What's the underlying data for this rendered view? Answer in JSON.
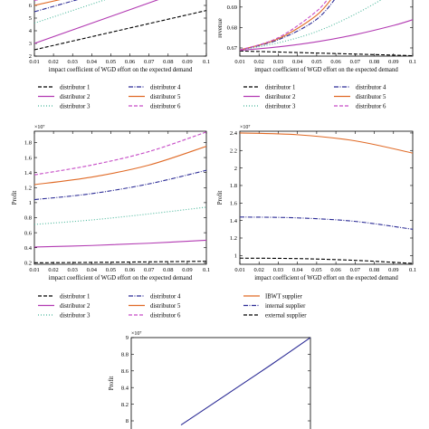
{
  "chart_data": [
    {
      "type": "line",
      "xlabel": "impact coefficient of WGD effort on the expected demand",
      "ylabel": "",
      "exponent_label": "",
      "x": [
        0.01,
        0.02,
        0.03,
        0.04,
        0.05,
        0.06,
        0.07,
        0.08,
        0.09,
        0.1
      ],
      "xlim": [
        0.01,
        0.1
      ],
      "ylim": [
        2,
        7
      ],
      "xticks": [
        "0.01",
        "0.02",
        "0.03",
        "0.04",
        "0.05",
        "0.06",
        "0.07",
        "0.08",
        "0.09",
        "0.1"
      ],
      "yticks": [
        {
          "v": 2,
          "t": "2"
        },
        {
          "v": 3,
          "t": "3"
        },
        {
          "v": 4,
          "t": "4"
        },
        {
          "v": 5,
          "t": "5"
        },
        {
          "v": 6,
          "t": "6"
        }
      ],
      "legend_columns": 2,
      "series": [
        {
          "name": "distributor 1",
          "color": "#000000",
          "dash": "4,2",
          "x": [
            0.01,
            0.1
          ],
          "values": [
            2.5,
            5.6
          ]
        },
        {
          "name": "distributor 2",
          "color": "#b23ab2",
          "dash": "",
          "x": [
            0.01,
            0.085
          ],
          "values": [
            3.0,
            7.0
          ]
        },
        {
          "name": "distributor 3",
          "color": "#4bb89c",
          "dash": "1,2",
          "x": [
            0.01,
            0.062
          ],
          "values": [
            4.6,
            7.2
          ]
        },
        {
          "name": "distributor 4",
          "color": "#2c2c96",
          "dash": "5,1.5,1,1.5",
          "x": [
            0.01,
            0.05
          ],
          "values": [
            5.5,
            7.2
          ]
        },
        {
          "name": "distributor 5",
          "color": "#e06a26",
          "dash": "",
          "x": [
            0.01,
            0.045
          ],
          "values": [
            6.0,
            7.2
          ]
        },
        {
          "name": "distributor 6",
          "color": "#c64cc6",
          "dash": "4,2",
          "x": [
            0.01,
            0.04
          ],
          "values": [
            6.4,
            7.2
          ]
        }
      ]
    },
    {
      "type": "line",
      "xlabel": "impact coefficient of WGD effort on the expected demand",
      "ylabel": "revenue",
      "exponent_label": "",
      "x": [
        0.01,
        0.02,
        0.03,
        0.04,
        0.05,
        0.06,
        0.07,
        0.08,
        0.09,
        0.1
      ],
      "xlim": [
        0.01,
        0.1
      ],
      "ylim": [
        0.666,
        0.697
      ],
      "xticks": [
        "0.01",
        "0.02",
        "0.03",
        "0.04",
        "0.05",
        "0.06",
        "0.07",
        "0.08",
        "0.09",
        "0.1"
      ],
      "yticks": [
        {
          "v": 0.67,
          "t": "0.67"
        },
        {
          "v": 0.68,
          "t": "0.68"
        },
        {
          "v": 0.69,
          "t": "0.69"
        }
      ],
      "legend_columns": 2,
      "series": [
        {
          "name": "distributor 1",
          "color": "#000000",
          "dash": "4,2",
          "x": [
            0.01,
            0.03,
            0.05,
            0.07,
            0.09,
            0.1
          ],
          "values": [
            0.6685,
            0.668,
            0.6675,
            0.667,
            0.6665,
            0.6662
          ]
        },
        {
          "name": "distributor 2",
          "color": "#b23ab2",
          "dash": "",
          "x": [
            0.01,
            0.03,
            0.05,
            0.07,
            0.09,
            0.1
          ],
          "values": [
            0.6688,
            0.6705,
            0.673,
            0.6765,
            0.681,
            0.6838
          ]
        },
        {
          "name": "distributor 3",
          "color": "#4bb89c",
          "dash": "1,2",
          "x": [
            0.01,
            0.03,
            0.05,
            0.07,
            0.09
          ],
          "values": [
            0.669,
            0.6725,
            0.678,
            0.6865,
            0.697
          ]
        },
        {
          "name": "distributor 4",
          "color": "#2c2c96",
          "dash": "5,1.5,1,1.5",
          "x": [
            0.01,
            0.03,
            0.05,
            0.062
          ],
          "values": [
            0.669,
            0.674,
            0.684,
            0.697
          ]
        },
        {
          "name": "distributor 5",
          "color": "#e06a26",
          "dash": "",
          "x": [
            0.01,
            0.03,
            0.05,
            0.06
          ],
          "values": [
            0.669,
            0.6745,
            0.686,
            0.697
          ]
        },
        {
          "name": "distributor 6",
          "color": "#c64cc6",
          "dash": "4,2",
          "x": [
            0.01,
            0.03,
            0.05,
            0.058
          ],
          "values": [
            0.669,
            0.675,
            0.688,
            0.697
          ]
        }
      ]
    },
    {
      "type": "line",
      "xlabel": "impact coefficient of WGD effort on the expected demand",
      "ylabel": "Profit",
      "exponent_label": "×10⁷",
      "x": [
        0.01,
        0.02,
        0.03,
        0.04,
        0.05,
        0.06,
        0.07,
        0.08,
        0.09,
        0.1
      ],
      "xlim": [
        0.01,
        0.1
      ],
      "ylim": [
        0.18,
        1.95
      ],
      "xticks": [
        "0.01",
        "0.02",
        "0.03",
        "0.04",
        "0.05",
        "0.06",
        "0.07",
        "0.08",
        "0.09",
        "0.1"
      ],
      "yticks": [
        {
          "v": 0.2,
          "t": "0.2"
        },
        {
          "v": 0.4,
          "t": "0.4"
        },
        {
          "v": 0.6,
          "t": "0.6"
        },
        {
          "v": 0.8,
          "t": "0.8"
        },
        {
          "v": 1,
          "t": "1"
        },
        {
          "v": 1.2,
          "t": "1.2"
        },
        {
          "v": 1.4,
          "t": "1.4"
        },
        {
          "v": 1.6,
          "t": "1.6"
        },
        {
          "v": 1.8,
          "t": "1.8"
        }
      ],
      "legend_columns": 2,
      "series": [
        {
          "name": "distributor 1",
          "color": "#000000",
          "dash": "4,2",
          "x": [
            0.01,
            0.04,
            0.07,
            0.1
          ],
          "values": [
            0.2,
            0.205,
            0.212,
            0.22
          ]
        },
        {
          "name": "distributor 2",
          "color": "#b23ab2",
          "dash": "",
          "x": [
            0.01,
            0.04,
            0.07,
            0.1
          ],
          "values": [
            0.41,
            0.43,
            0.46,
            0.5
          ]
        },
        {
          "name": "distributor 3",
          "color": "#4bb89c",
          "dash": "1,2",
          "x": [
            0.01,
            0.04,
            0.07,
            0.1
          ],
          "values": [
            0.71,
            0.77,
            0.85,
            0.94
          ]
        },
        {
          "name": "distributor 4",
          "color": "#2c2c96",
          "dash": "5,1.5,1,1.5",
          "x": [
            0.01,
            0.04,
            0.07,
            0.1
          ],
          "values": [
            1.04,
            1.12,
            1.25,
            1.43
          ]
        },
        {
          "name": "distributor 5",
          "color": "#e06a26",
          "dash": "",
          "x": [
            0.01,
            0.04,
            0.07,
            0.1
          ],
          "values": [
            1.24,
            1.34,
            1.5,
            1.75
          ]
        },
        {
          "name": "distributor 6",
          "color": "#c64cc6",
          "dash": "4,2",
          "x": [
            0.01,
            0.04,
            0.07,
            0.1
          ],
          "values": [
            1.37,
            1.5,
            1.68,
            1.94
          ]
        }
      ]
    },
    {
      "type": "line",
      "xlabel": "impact coefficient of WGD effort on the expected demand",
      "ylabel": "Profit",
      "exponent_label": "×10⁷",
      "x": [
        0.01,
        0.02,
        0.03,
        0.04,
        0.05,
        0.06,
        0.07,
        0.08,
        0.09,
        0.1
      ],
      "xlim": [
        0.01,
        0.1
      ],
      "ylim": [
        0.9,
        2.42
      ],
      "xticks": [
        "0.01",
        "0.02",
        "0.03",
        "0.04",
        "0.05",
        "0.06",
        "0.07",
        "0.08",
        "0.09",
        "0.1"
      ],
      "yticks": [
        {
          "v": 1,
          "t": "1"
        },
        {
          "v": 1.2,
          "t": "1.2"
        },
        {
          "v": 1.4,
          "t": "1.4"
        },
        {
          "v": 1.6,
          "t": "1.6"
        },
        {
          "v": 1.8,
          "t": "1.8"
        },
        {
          "v": 2,
          "t": "2"
        },
        {
          "v": 2.2,
          "t": "2.2"
        },
        {
          "v": 2.4,
          "t": "2.4"
        }
      ],
      "legend_columns": 1,
      "series": [
        {
          "name": "IBWT supplier",
          "color": "#e06a26",
          "dash": "",
          "x": [
            0.01,
            0.04,
            0.07,
            0.1
          ],
          "values": [
            2.4,
            2.38,
            2.31,
            2.17
          ]
        },
        {
          "name": "internal supplier",
          "color": "#2c2c96",
          "dash": "5,1.5,1,1.5",
          "x": [
            0.01,
            0.04,
            0.07,
            0.1
          ],
          "values": [
            1.44,
            1.43,
            1.39,
            1.3
          ]
        },
        {
          "name": "external supplier",
          "color": "#000000",
          "dash": "4,2",
          "x": [
            0.01,
            0.04,
            0.07,
            0.1
          ],
          "values": [
            0.97,
            0.965,
            0.945,
            0.91
          ]
        }
      ]
    },
    {
      "type": "line",
      "xlabel": "",
      "ylabel": "Profit",
      "exponent_label": "×10⁷",
      "x": [
        0.01,
        0.1
      ],
      "xlim": [
        0.01,
        0.1
      ],
      "ylim": [
        7.75,
        9.0
      ],
      "xticks": [],
      "yticks": [
        {
          "v": 8,
          "t": "8"
        },
        {
          "v": 8.2,
          "t": "8.2"
        },
        {
          "v": 8.4,
          "t": "8.4"
        },
        {
          "v": 8.6,
          "t": "8.6"
        },
        {
          "v": 8.8,
          "t": "8.8"
        },
        {
          "v": 9,
          "t": "9"
        }
      ],
      "legend_columns": 0,
      "series": [
        {
          "name": "",
          "color": "#2c2c96",
          "dash": "",
          "x": [
            0.035,
            0.06,
            0.08,
            0.1
          ],
          "values": [
            7.95,
            8.35,
            8.67,
            9.0
          ]
        }
      ]
    }
  ]
}
